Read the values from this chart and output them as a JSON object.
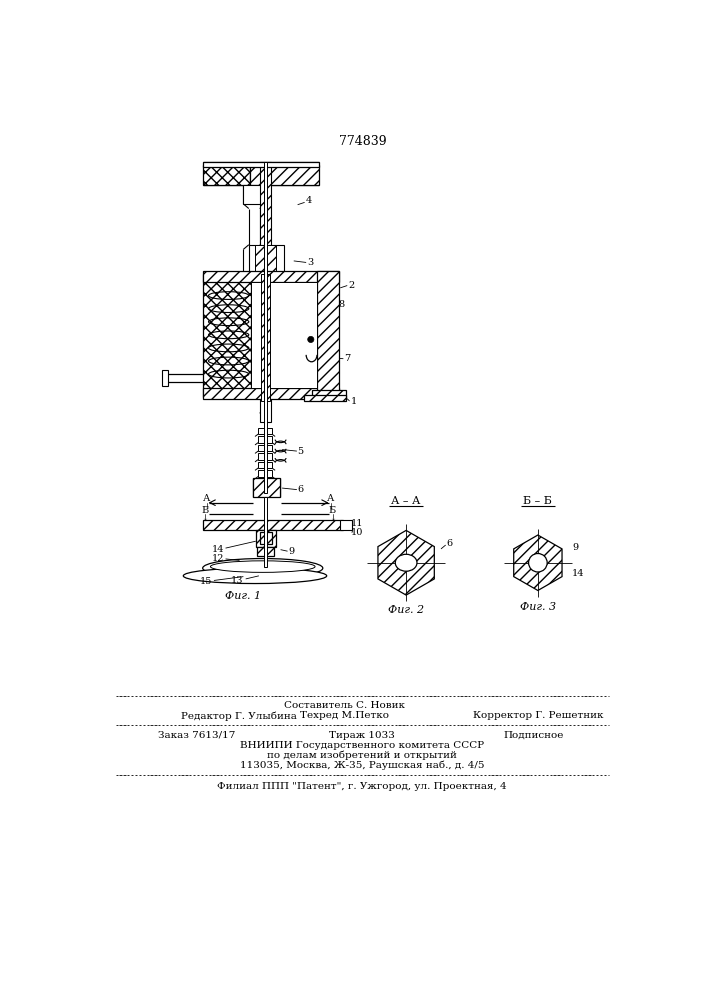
{
  "patent_number": "774839",
  "bg": "#ffffff",
  "fig_w": 707,
  "fig_h": 1000,
  "footer": {
    "line1_center": "Составитель С. Новик",
    "line2_left": "Редактор Г. Улыбина",
    "line2_center": "Техред М.Петко",
    "line2_right": "Корректор Г. Решетник",
    "line3_left": "Заказ 7613/17",
    "line3_center": "Тираж 1033",
    "line3_right": "Подписное",
    "line4": "ВНИИПИ Государственного комитета СССР",
    "line5": "по делам изобретений и открытий",
    "line6": "113035, Москва, Ж-35, Раушская наб., д. 4/5",
    "line7": "Филиал ППП \"Патент\", г. Ужгород, ул. Проектная, 4"
  }
}
